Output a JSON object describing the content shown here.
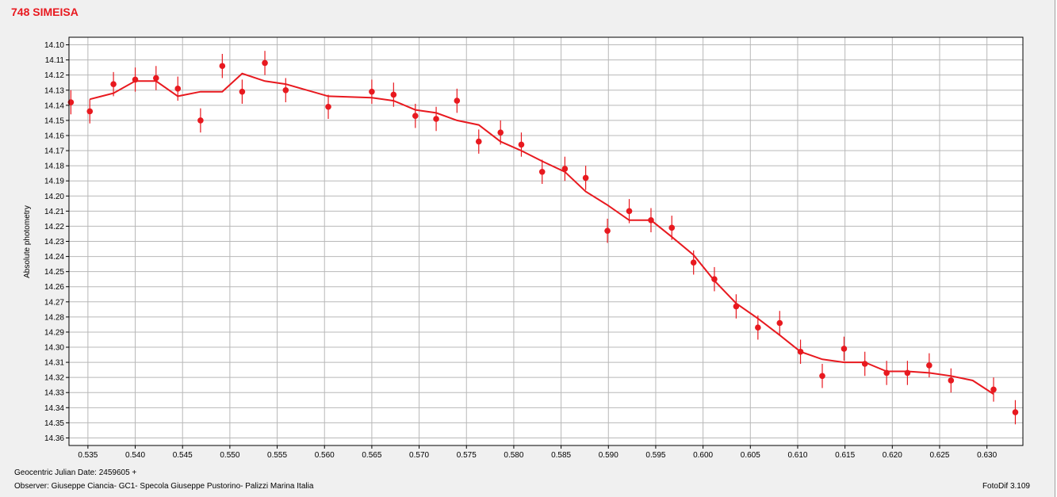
{
  "chart_data": {
    "type": "scatter",
    "title": "748 SIMEISA",
    "xlabel": "Geocentric Julian Date: 2459605 +",
    "ylabel": "Absolute photometry",
    "xlim": [
      0.533,
      0.6338
    ],
    "ylim": [
      14.365,
      14.095
    ],
    "y_inverted": true,
    "grid": true,
    "x_ticks": [
      "0.535",
      "0.540",
      "0.545",
      "0.550",
      "0.555",
      "0.560",
      "0.565",
      "0.570",
      "0.575",
      "0.580",
      "0.585",
      "0.590",
      "0.595",
      "0.600",
      "0.605",
      "0.610",
      "0.615",
      "0.620",
      "0.625",
      "0.630"
    ],
    "y_ticks": [
      "14.10",
      "14.11",
      "14.12",
      "14.13",
      "14.14",
      "14.15",
      "14.16",
      "14.17",
      "14.18",
      "14.19",
      "14.20",
      "14.21",
      "14.22",
      "14.23",
      "14.24",
      "14.25",
      "14.26",
      "14.27",
      "14.28",
      "14.29",
      "14.30",
      "14.31",
      "14.32",
      "14.33",
      "14.34",
      "14.35",
      "14.36"
    ],
    "series": [
      {
        "kind": "points_with_errorbars",
        "color": "#e8191f",
        "error": 0.008,
        "x": [
          0.5332,
          0.5352,
          0.5377,
          0.54,
          0.5422,
          0.5445,
          0.5469,
          0.5492,
          0.5513,
          0.5537,
          0.5559,
          0.5604,
          0.565,
          0.5673,
          0.5696,
          0.5718,
          0.574,
          0.5763,
          0.5786,
          0.5808,
          0.583,
          0.5854,
          0.5876,
          0.5899,
          0.5922,
          0.5945,
          0.5967,
          0.599,
          0.6012,
          0.6035,
          0.6058,
          0.6081,
          0.6103,
          0.6126,
          0.6149,
          0.6171,
          0.6194,
          0.6216,
          0.6239,
          0.6262,
          0.6307,
          0.633
        ],
        "y": [
          14.138,
          14.144,
          14.126,
          14.123,
          14.122,
          14.129,
          14.15,
          14.114,
          14.131,
          14.112,
          14.13,
          14.141,
          14.131,
          14.133,
          14.147,
          14.149,
          14.137,
          14.164,
          14.158,
          14.166,
          14.184,
          14.182,
          14.188,
          14.223,
          14.21,
          14.216,
          14.221,
          14.244,
          14.255,
          14.273,
          14.287,
          14.284,
          14.303,
          14.319,
          14.301,
          14.311,
          14.317,
          14.317,
          14.312,
          14.322,
          14.328,
          14.343
        ]
      },
      {
        "kind": "fit_line",
        "color": "#e8191f",
        "x": [
          0.5352,
          0.5377,
          0.54,
          0.5422,
          0.5445,
          0.5469,
          0.5492,
          0.5513,
          0.5537,
          0.5559,
          0.5604,
          0.565,
          0.5673,
          0.5696,
          0.5718,
          0.574,
          0.5763,
          0.5786,
          0.5808,
          0.583,
          0.5854,
          0.5876,
          0.5899,
          0.5922,
          0.5945,
          0.5967,
          0.599,
          0.6012,
          0.6035,
          0.6058,
          0.6081,
          0.6103,
          0.6126,
          0.6149,
          0.6171,
          0.6194,
          0.6216,
          0.6239,
          0.6262,
          0.6285,
          0.6307
        ],
        "y": [
          14.136,
          14.132,
          14.124,
          14.124,
          14.134,
          14.131,
          14.131,
          14.119,
          14.124,
          14.126,
          14.134,
          14.135,
          14.137,
          14.143,
          14.145,
          14.15,
          14.153,
          14.164,
          14.17,
          14.177,
          14.184,
          14.197,
          14.206,
          14.216,
          14.216,
          14.227,
          14.239,
          14.256,
          14.271,
          14.281,
          14.292,
          14.303,
          14.308,
          14.31,
          14.31,
          14.316,
          14.316,
          14.317,
          14.319,
          14.322,
          14.331
        ]
      }
    ]
  },
  "footer": {
    "observer": "Observer: Giuseppe Ciancia- GC1- Specola Giuseppe Pustorino- Palizzi Marina Italia",
    "software": "FotoDif 3.109"
  }
}
